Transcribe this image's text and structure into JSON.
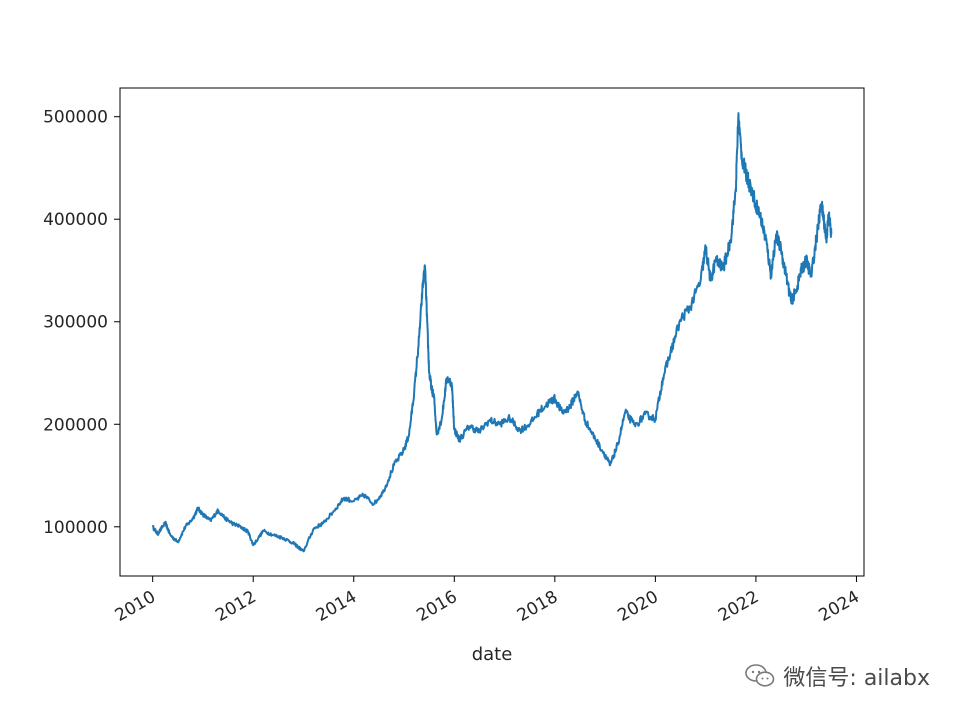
{
  "chart_data": {
    "type": "line",
    "title": "",
    "xlabel": "date",
    "ylabel": "",
    "xlim": [
      2009.35,
      2024.15
    ],
    "ylim": [
      52000,
      528000
    ],
    "x_ticks": [
      2010,
      2012,
      2014,
      2016,
      2018,
      2020,
      2022,
      2024
    ],
    "x_tick_labels": [
      "2010",
      "2012",
      "2014",
      "2016",
      "2018",
      "2020",
      "2022",
      "2024"
    ],
    "y_ticks": [
      100000,
      200000,
      300000,
      400000,
      500000
    ],
    "y_tick_labels": [
      "100000",
      "200000",
      "300000",
      "400000",
      "500000"
    ],
    "grid": false,
    "series": [
      {
        "color": "#1f77b4",
        "x": [
          2010.0,
          2010.1,
          2010.25,
          2010.35,
          2010.5,
          2010.65,
          2010.8,
          2010.9,
          2011.0,
          2011.15,
          2011.3,
          2011.45,
          2011.6,
          2011.75,
          2011.9,
          2012.0,
          2012.2,
          2012.4,
          2012.6,
          2012.8,
          2012.9,
          2013.0,
          2013.2,
          2013.4,
          2013.6,
          2013.8,
          2014.0,
          2014.2,
          2014.4,
          2014.6,
          2014.8,
          2015.0,
          2015.1,
          2015.2,
          2015.3,
          2015.38,
          2015.42,
          2015.46,
          2015.5,
          2015.55,
          2015.6,
          2015.65,
          2015.75,
          2015.85,
          2015.95,
          2016.0,
          2016.1,
          2016.3,
          2016.5,
          2016.7,
          2016.9,
          2017.1,
          2017.3,
          2017.5,
          2017.7,
          2017.9,
          2018.0,
          2018.15,
          2018.3,
          2018.45,
          2018.6,
          2018.8,
          2019.0,
          2019.1,
          2019.25,
          2019.4,
          2019.6,
          2019.8,
          2020.0,
          2020.15,
          2020.3,
          2020.5,
          2020.7,
          2020.9,
          2021.0,
          2021.1,
          2021.2,
          2021.35,
          2021.5,
          2021.6,
          2021.65,
          2021.72,
          2021.8,
          2021.9,
          2022.0,
          2022.1,
          2022.2,
          2022.3,
          2022.4,
          2022.5,
          2022.6,
          2022.7,
          2022.8,
          2022.9,
          2023.0,
          2023.1,
          2023.2,
          2023.3,
          2023.35,
          2023.4,
          2023.45,
          2023.5
        ],
        "y": [
          100000,
          93000,
          104000,
          92000,
          85000,
          100000,
          108000,
          118000,
          112000,
          106000,
          116000,
          108000,
          103000,
          100000,
          95000,
          82000,
          96000,
          92000,
          89000,
          84000,
          80000,
          76000,
          98000,
          104000,
          115000,
          128000,
          125000,
          131000,
          122000,
          135000,
          160000,
          175000,
          190000,
          230000,
          285000,
          340000,
          352000,
          300000,
          250000,
          235000,
          225000,
          190000,
          205000,
          245000,
          240000,
          195000,
          185000,
          198000,
          193000,
          204000,
          200000,
          206000,
          194000,
          200000,
          213000,
          222000,
          225000,
          211000,
          217000,
          232000,
          204000,
          186000,
          170000,
          160000,
          180000,
          212000,
          198000,
          210000,
          205000,
          245000,
          270000,
          302000,
          315000,
          340000,
          372000,
          340000,
          360000,
          352000,
          380000,
          430000,
          500000,
          460000,
          445000,
          430000,
          415000,
          400000,
          380000,
          345000,
          385000,
          370000,
          345000,
          320000,
          330000,
          350000,
          360000,
          345000,
          380000,
          415000,
          400000,
          380000,
          405000,
          385000
        ]
      }
    ]
  },
  "watermark": {
    "text": "微信号: ailabx",
    "icon": "wechat-icon"
  }
}
